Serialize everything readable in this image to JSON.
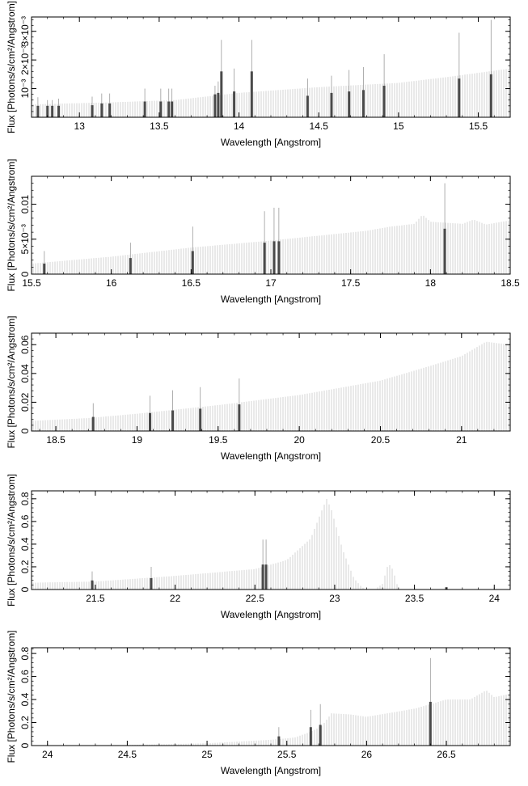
{
  "chart_data": [
    {
      "type": "bar",
      "xlabel": "Wavelength [Angstrom]",
      "ylabel": "Flux [Photons/s/cm²/Angstrom]",
      "xlim": [
        12.7,
        15.7
      ],
      "ylim": [
        0,
        0.0035
      ],
      "x_ticks": [
        13,
        13.5,
        14,
        14.5,
        15,
        15.5
      ],
      "x_tick_labels": [
        "13",
        "13.5",
        "14",
        "14.5",
        "15",
        "15.5"
      ],
      "y_ticks": [
        0.001,
        0.002,
        0.003
      ],
      "y_tick_labels": [
        "10⁻³",
        "2×10⁻³",
        "3×10⁻³"
      ],
      "continuum": {
        "x": [
          12.7,
          13.2,
          13.6,
          14.0,
          14.5,
          15.0,
          15.3,
          15.5,
          15.7
        ],
        "y": [
          0.00045,
          0.00052,
          0.0006,
          0.00085,
          0.00105,
          0.0012,
          0.0014,
          0.00155,
          0.0017
        ]
      },
      "lines": [
        {
          "x": 12.74,
          "y": 0.0004,
          "err": 0.0003
        },
        {
          "x": 12.8,
          "y": 0.0004,
          "err": 0.0002
        },
        {
          "x": 12.83,
          "y": 0.0004,
          "err": 0.0002
        },
        {
          "x": 12.87,
          "y": 0.0004,
          "err": 0.00025
        },
        {
          "x": 13.08,
          "y": 0.00042,
          "err": 0.0003
        },
        {
          "x": 13.14,
          "y": 0.00048,
          "err": 0.00035
        },
        {
          "x": 13.19,
          "y": 0.00048,
          "err": 0.00035
        },
        {
          "x": 13.41,
          "y": 0.00055,
          "err": 0.00045
        },
        {
          "x": 13.51,
          "y": 0.00055,
          "err": 0.00045
        },
        {
          "x": 13.56,
          "y": 0.00055,
          "err": 0.00045
        },
        {
          "x": 13.58,
          "y": 0.00055,
          "err": 0.00045
        },
        {
          "x": 13.85,
          "y": 0.0008,
          "err": 0.0003
        },
        {
          "x": 13.87,
          "y": 0.00085,
          "err": 0.0004
        },
        {
          "x": 13.89,
          "y": 0.0016,
          "err": 0.0011
        },
        {
          "x": 13.97,
          "y": 0.0009,
          "err": 0.0008
        },
        {
          "x": 14.08,
          "y": 0.0016,
          "err": 0.0011
        },
        {
          "x": 14.43,
          "y": 0.00075,
          "err": 0.0006
        },
        {
          "x": 14.58,
          "y": 0.00085,
          "err": 0.0006
        },
        {
          "x": 14.69,
          "y": 0.0009,
          "err": 0.00075
        },
        {
          "x": 14.78,
          "y": 0.00095,
          "err": 0.0008
        },
        {
          "x": 14.91,
          "y": 0.0011,
          "err": 0.0011
        },
        {
          "x": 15.38,
          "y": 0.00135,
          "err": 0.0016
        },
        {
          "x": 15.58,
          "y": 0.0015,
          "err": 0.0019
        }
      ]
    },
    {
      "type": "bar",
      "xlabel": "Wavelength [Angstrom]",
      "ylabel": "Flux [Photons/s/cm²/Angstrom]",
      "xlim": [
        15.5,
        18.5
      ],
      "ylim": [
        0,
        0.014
      ],
      "x_ticks": [
        15.5,
        16,
        16.5,
        17,
        17.5,
        18,
        18.5
      ],
      "x_tick_labels": [
        "15.5",
        "16",
        "16.5",
        "17",
        "17.5",
        "18",
        "18.5"
      ],
      "y_ticks": [
        0,
        0.005,
        0.01
      ],
      "y_tick_labels": [
        "0",
        "5×10⁻³",
        "0.01"
      ],
      "continuum": {
        "x": [
          15.5,
          16.0,
          16.5,
          17.0,
          17.3,
          17.6,
          17.75,
          17.9,
          17.95,
          18.0,
          18.2,
          18.27,
          18.35,
          18.5
        ],
        "y": [
          0.0015,
          0.0025,
          0.0038,
          0.0048,
          0.0055,
          0.0062,
          0.0068,
          0.0072,
          0.0085,
          0.0075,
          0.0072,
          0.0078,
          0.0071,
          0.0077
        ]
      },
      "lines": [
        {
          "x": 15.58,
          "y": 0.0015,
          "err": 0.0018
        },
        {
          "x": 16.12,
          "y": 0.0023,
          "err": 0.0022
        },
        {
          "x": 16.51,
          "y": 0.0033,
          "err": 0.0035
        },
        {
          "x": 16.96,
          "y": 0.0045,
          "err": 0.0045
        },
        {
          "x": 17.02,
          "y": 0.0047,
          "err": 0.0048
        },
        {
          "x": 17.05,
          "y": 0.0047,
          "err": 0.0048
        },
        {
          "x": 18.09,
          "y": 0.0065,
          "err": 0.0065
        }
      ]
    },
    {
      "type": "bar",
      "xlabel": "Wavelength [Angstrom]",
      "ylabel": "Flux [Photons/s/cm²/Angstrom]",
      "xlim": [
        18.35,
        21.3
      ],
      "ylim": [
        0,
        0.068
      ],
      "x_ticks": [
        18.5,
        19,
        19.5,
        20,
        20.5,
        21
      ],
      "x_tick_labels": [
        "18.5",
        "19",
        "19.5",
        "20",
        "20.5",
        "21"
      ],
      "y_ticks": [
        0,
        0.02,
        0.04,
        0.06
      ],
      "y_tick_labels": [
        "0",
        "0.02",
        "0.04",
        "0.06"
      ],
      "continuum": {
        "x": [
          18.35,
          18.7,
          19.0,
          19.5,
          20.0,
          20.5,
          20.8,
          21.0,
          21.15,
          21.3
        ],
        "y": [
          0.007,
          0.009,
          0.012,
          0.018,
          0.025,
          0.035,
          0.045,
          0.052,
          0.062,
          0.06
        ]
      },
      "lines": [
        {
          "x": 18.73,
          "y": 0.0098,
          "err": 0.0095
        },
        {
          "x": 19.08,
          "y": 0.0125,
          "err": 0.012
        },
        {
          "x": 19.22,
          "y": 0.0143,
          "err": 0.014
        },
        {
          "x": 19.39,
          "y": 0.0155,
          "err": 0.015
        },
        {
          "x": 19.63,
          "y": 0.0185,
          "err": 0.018
        }
      ]
    },
    {
      "type": "bar",
      "xlabel": "Wavelength [Angstrom]",
      "ylabel": "Flux [Photons/s/cm²/Angstrom]",
      "xlim": [
        21.1,
        24.1
      ],
      "ylim": [
        0,
        0.87
      ],
      "x_ticks": [
        21.5,
        22,
        22.5,
        23,
        23.5,
        24
      ],
      "x_tick_labels": [
        "21.5",
        "22",
        "22.5",
        "23",
        "23.5",
        "24"
      ],
      "y_ticks": [
        0,
        0.2,
        0.4,
        0.6,
        0.8
      ],
      "y_tick_labels": [
        "0",
        "0.2",
        "0.4",
        "0.6",
        "0.8"
      ],
      "continuum": {
        "x": [
          21.1,
          21.5,
          22.0,
          22.5,
          22.7,
          22.85,
          22.92,
          22.95,
          22.98,
          23.05,
          23.12,
          23.17,
          23.2,
          23.25,
          23.3,
          23.33,
          23.35,
          23.37,
          23.4,
          23.5,
          24.1
        ],
        "y": [
          0.06,
          0.07,
          0.12,
          0.18,
          0.26,
          0.45,
          0.7,
          0.8,
          0.7,
          0.35,
          0.1,
          0.02,
          0.0,
          0.0,
          0.05,
          0.2,
          0.22,
          0.15,
          0.0,
          0.0,
          0.0
        ]
      },
      "lines": [
        {
          "x": 21.48,
          "y": 0.08,
          "err": 0.08
        },
        {
          "x": 21.85,
          "y": 0.1,
          "err": 0.1
        },
        {
          "x": 22.55,
          "y": 0.22,
          "err": 0.22
        },
        {
          "x": 22.57,
          "y": 0.22,
          "err": 0.22
        },
        {
          "x": 23.7,
          "y": 0.02,
          "err": 0.0
        }
      ]
    },
    {
      "type": "bar",
      "xlabel": "Wavelength [Angstrom]",
      "ylabel": "Flux [Photons/s/cm²/Angstrom]",
      "xlim": [
        23.9,
        26.9
      ],
      "ylim": [
        0,
        0.85
      ],
      "x_ticks": [
        24,
        24.5,
        25,
        25.5,
        26,
        26.5
      ],
      "x_tick_labels": [
        "24",
        "24.5",
        "25",
        "25.5",
        "26",
        "26.5"
      ],
      "y_ticks": [
        0,
        0.2,
        0.4,
        0.6,
        0.8
      ],
      "y_tick_labels": [
        "0",
        "0.2",
        "0.4",
        "0.6",
        "0.8"
      ],
      "continuum": {
        "x": [
          23.9,
          24.5,
          25.0,
          25.4,
          25.55,
          25.65,
          25.72,
          25.78,
          25.9,
          26.0,
          26.3,
          26.5,
          26.65,
          26.75,
          26.8,
          26.9
        ],
        "y": [
          0.0,
          0.005,
          0.02,
          0.05,
          0.07,
          0.12,
          0.17,
          0.28,
          0.27,
          0.25,
          0.32,
          0.4,
          0.4,
          0.48,
          0.42,
          0.45
        ]
      },
      "lines": [
        {
          "x": 25.45,
          "y": 0.08,
          "err": 0.08
        },
        {
          "x": 25.65,
          "y": 0.16,
          "err": 0.15
        },
        {
          "x": 25.71,
          "y": 0.18,
          "err": 0.18
        },
        {
          "x": 26.4,
          "y": 0.38,
          "err": 0.38
        }
      ]
    }
  ]
}
